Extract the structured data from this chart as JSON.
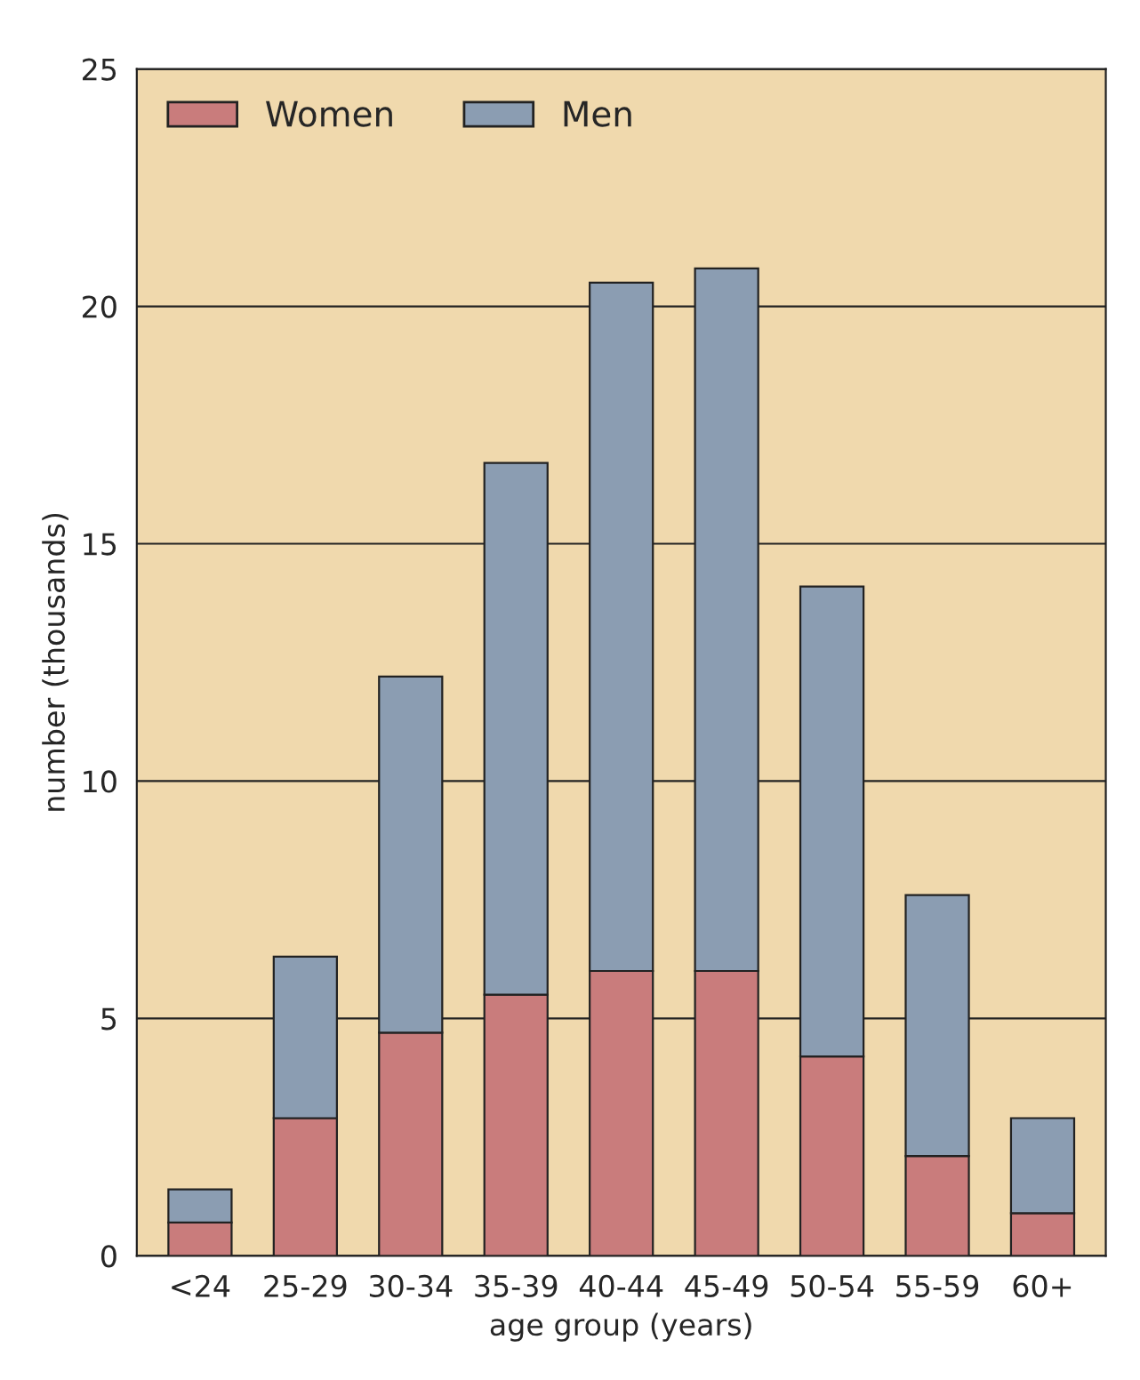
{
  "chart_data": {
    "type": "bar",
    "stacked": true,
    "xlabel": "age group (years)",
    "ylabel": "number (thousands)",
    "categories": [
      "<24",
      "25-29",
      "30-34",
      "35-39",
      "40-44",
      "45-49",
      "50-54",
      "55-59",
      "60+"
    ],
    "series": [
      {
        "name": "Women",
        "color": "#c97c7c",
        "values": [
          0.7,
          2.9,
          4.7,
          5.5,
          6.0,
          6.0,
          4.2,
          2.1,
          0.9
        ]
      },
      {
        "name": "Men",
        "color": "#8b9db2",
        "values": [
          0.7,
          3.4,
          7.5,
          11.2,
          14.5,
          14.8,
          9.9,
          5.5,
          2.0
        ]
      }
    ],
    "ylim": [
      0,
      25
    ],
    "yticks": [
      0,
      5,
      10,
      15,
      20,
      25
    ],
    "grid": "y",
    "legend": "top left"
  }
}
